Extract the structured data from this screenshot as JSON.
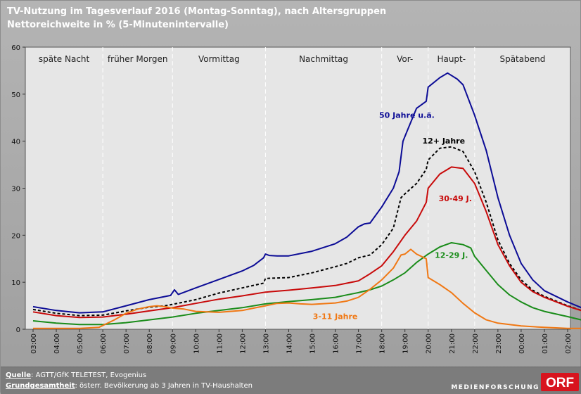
{
  "title": {
    "line1": "TV-Nutzung im Tagesverlauf 2016 (Montag-Sonntag), nach Altersgruppen",
    "line2": "Nettoreichweite in % (5-Minutenintervalle)"
  },
  "footer": {
    "source_label": "Quelle",
    "source_text": ": AGTT/GfK TELETEST, Evogenius",
    "base_label": "Grundgesamtheit",
    "base_text": ": österr. Bevölkerung ab 3 Jahren in TV-Haushalten",
    "brand": "MEDIENFORSCHUNG",
    "logo_text": "ORF"
  },
  "colors": {
    "s50": "#0c0c96",
    "s12": "#000000",
    "s3049": "#c80a0a",
    "s1229": "#1a8c1a",
    "s311": "#f07814",
    "logo_red": "#d8141e"
  },
  "chart_data": {
    "type": "line",
    "x_unit": "time",
    "x_range": [
      "03:00",
      "03:00"
    ],
    "ylim": [
      0,
      60
    ],
    "yticks": [
      0,
      10,
      20,
      30,
      40,
      50,
      60
    ],
    "xticks": [
      "03:00",
      "04:00",
      "05:00",
      "06:00",
      "07:00",
      "08:00",
      "09:00",
      "10:00",
      "11:00",
      "12:00",
      "13:00",
      "14:00",
      "15:00",
      "16:00",
      "17:00",
      "18:00",
      "19:00",
      "20:00",
      "21:00",
      "22:00",
      "23:00",
      "00:00",
      "01:00",
      "02:00"
    ],
    "grid": false,
    "dayparts": [
      {
        "label": "späte Nacht",
        "start": "03:00",
        "end": "06:00"
      },
      {
        "label": "früher Morgen",
        "start": "06:00",
        "end": "09:00"
      },
      {
        "label": "Vormittag",
        "start": "09:00",
        "end": "13:00"
      },
      {
        "label": "Nachmittag",
        "start": "13:00",
        "end": "18:00"
      },
      {
        "label": "Vor-",
        "start": "18:00",
        "end": "20:00"
      },
      {
        "label": "Haupt-",
        "start": "20:00",
        "end": "22:00"
      },
      {
        "label": "Spätabend",
        "start": "22:00",
        "end": "03:00"
      }
    ],
    "series": [
      {
        "name": "50 Jahre u.ä.",
        "color": "#0c0c96",
        "dashed": false,
        "points": [
          [
            "03:00",
            4.8
          ],
          [
            "04:00",
            4.0
          ],
          [
            "05:00",
            3.5
          ],
          [
            "06:00",
            3.7
          ],
          [
            "07:00",
            5.0
          ],
          [
            "08:00",
            6.3
          ],
          [
            "08:30",
            6.8
          ],
          [
            "08:55",
            7.2
          ],
          [
            "09:05",
            8.4
          ],
          [
            "09:15",
            7.4
          ],
          [
            "10:00",
            8.8
          ],
          [
            "11:00",
            10.6
          ],
          [
            "12:00",
            12.4
          ],
          [
            "12:30",
            13.6
          ],
          [
            "12:55",
            15.2
          ],
          [
            "13:00",
            16.0
          ],
          [
            "13:10",
            15.7
          ],
          [
            "13:30",
            15.6
          ],
          [
            "14:00",
            15.6
          ],
          [
            "15:00",
            16.6
          ],
          [
            "16:00",
            18.2
          ],
          [
            "16:30",
            19.6
          ],
          [
            "17:00",
            21.8
          ],
          [
            "17:15",
            22.4
          ],
          [
            "17:30",
            22.6
          ],
          [
            "18:00",
            26.0
          ],
          [
            "18:30",
            30.0
          ],
          [
            "18:45",
            33.5
          ],
          [
            "18:55",
            40.0
          ],
          [
            "19:05",
            42.0
          ],
          [
            "19:30",
            47.0
          ],
          [
            "19:55",
            48.5
          ],
          [
            "20:00",
            51.5
          ],
          [
            "20:30",
            53.5
          ],
          [
            "20:50",
            54.5
          ],
          [
            "21:15",
            53.2
          ],
          [
            "21:30",
            52.0
          ],
          [
            "22:00",
            45.5
          ],
          [
            "22:30",
            38.0
          ],
          [
            "23:00",
            28.0
          ],
          [
            "23:30",
            20.0
          ],
          [
            "00:00",
            14.0
          ],
          [
            "00:30",
            10.5
          ],
          [
            "01:00",
            8.2
          ],
          [
            "02:00",
            5.8
          ],
          [
            "02:50",
            4.1
          ]
        ]
      },
      {
        "name": "12+ Jahre",
        "color": "#000000",
        "dashed": true,
        "points": [
          [
            "03:00",
            4.2
          ],
          [
            "04:00",
            3.4
          ],
          [
            "05:00",
            2.9
          ],
          [
            "06:00",
            3.0
          ],
          [
            "07:00",
            3.9
          ],
          [
            "08:00",
            4.7
          ],
          [
            "08:40",
            5.0
          ],
          [
            "09:00",
            5.3
          ],
          [
            "10:00",
            6.3
          ],
          [
            "11:00",
            7.7
          ],
          [
            "12:00",
            8.8
          ],
          [
            "12:55",
            9.8
          ],
          [
            "13:00",
            10.8
          ],
          [
            "14:00",
            11.0
          ],
          [
            "15:00",
            12.0
          ],
          [
            "16:00",
            13.3
          ],
          [
            "16:30",
            14.0
          ],
          [
            "17:00",
            15.2
          ],
          [
            "17:30",
            15.8
          ],
          [
            "18:00",
            18.0
          ],
          [
            "18:30",
            21.5
          ],
          [
            "18:50",
            28.0
          ],
          [
            "19:00",
            28.8
          ],
          [
            "19:30",
            31.0
          ],
          [
            "19:55",
            34.0
          ],
          [
            "20:00",
            36.0
          ],
          [
            "20:30",
            38.5
          ],
          [
            "21:00",
            38.8
          ],
          [
            "21:30",
            37.8
          ],
          [
            "22:00",
            33.5
          ],
          [
            "22:30",
            27.0
          ],
          [
            "23:00",
            19.0
          ],
          [
            "23:30",
            14.0
          ],
          [
            "00:00",
            10.5
          ],
          [
            "00:30",
            8.3
          ],
          [
            "01:00",
            7.0
          ],
          [
            "02:00",
            5.0
          ],
          [
            "02:50",
            3.6
          ]
        ]
      },
      {
        "name": "30-49 J.",
        "color": "#c80a0a",
        "dashed": false,
        "points": [
          [
            "03:00",
            3.7
          ],
          [
            "04:00",
            2.9
          ],
          [
            "05:00",
            2.5
          ],
          [
            "06:00",
            2.6
          ],
          [
            "07:00",
            3.2
          ],
          [
            "08:00",
            3.9
          ],
          [
            "09:00",
            4.6
          ],
          [
            "10:00",
            5.5
          ],
          [
            "11:00",
            6.4
          ],
          [
            "12:00",
            7.1
          ],
          [
            "13:00",
            7.9
          ],
          [
            "14:00",
            8.3
          ],
          [
            "15:00",
            8.8
          ],
          [
            "16:00",
            9.3
          ],
          [
            "16:30",
            9.8
          ],
          [
            "17:00",
            10.3
          ],
          [
            "17:30",
            11.8
          ],
          [
            "18:00",
            13.5
          ],
          [
            "18:30",
            16.5
          ],
          [
            "19:00",
            20.0
          ],
          [
            "19:30",
            23.0
          ],
          [
            "19:55",
            27.0
          ],
          [
            "20:00",
            30.0
          ],
          [
            "20:30",
            33.0
          ],
          [
            "21:00",
            34.5
          ],
          [
            "21:30",
            34.2
          ],
          [
            "22:00",
            31.0
          ],
          [
            "22:30",
            25.0
          ],
          [
            "23:00",
            18.0
          ],
          [
            "23:30",
            13.5
          ],
          [
            "00:00",
            10.0
          ],
          [
            "00:30",
            8.0
          ],
          [
            "01:00",
            6.8
          ],
          [
            "02:00",
            4.9
          ],
          [
            "02:50",
            3.6
          ]
        ]
      },
      {
        "name": "12-29 J.",
        "color": "#1a8c1a",
        "dashed": false,
        "points": [
          [
            "03:00",
            1.8
          ],
          [
            "04:00",
            1.3
          ],
          [
            "05:00",
            1.0
          ],
          [
            "06:00",
            1.0
          ],
          [
            "07:00",
            1.4
          ],
          [
            "08:00",
            2.0
          ],
          [
            "09:00",
            2.6
          ],
          [
            "10:00",
            3.4
          ],
          [
            "11:00",
            4.0
          ],
          [
            "12:00",
            4.6
          ],
          [
            "13:00",
            5.4
          ],
          [
            "14:00",
            5.9
          ],
          [
            "15:00",
            6.3
          ],
          [
            "16:00",
            6.8
          ],
          [
            "16:30",
            7.3
          ],
          [
            "17:00",
            7.8
          ],
          [
            "17:30",
            8.4
          ],
          [
            "18:00",
            9.2
          ],
          [
            "18:30",
            10.5
          ],
          [
            "19:00",
            12.0
          ],
          [
            "19:30",
            14.2
          ],
          [
            "20:00",
            16.0
          ],
          [
            "20:30",
            17.5
          ],
          [
            "21:00",
            18.4
          ],
          [
            "21:30",
            18.0
          ],
          [
            "21:50",
            17.3
          ],
          [
            "22:00",
            15.5
          ],
          [
            "22:30",
            12.5
          ],
          [
            "23:00",
            9.5
          ],
          [
            "23:30",
            7.3
          ],
          [
            "00:00",
            5.8
          ],
          [
            "00:30",
            4.6
          ],
          [
            "01:00",
            3.8
          ],
          [
            "02:00",
            2.7
          ],
          [
            "02:50",
            1.7
          ]
        ]
      },
      {
        "name": "3-11 Jahre",
        "color": "#f07814",
        "dashed": false,
        "points": [
          [
            "03:00",
            0.2
          ],
          [
            "04:00",
            0.2
          ],
          [
            "05:00",
            0.2
          ],
          [
            "05:50",
            0.4
          ],
          [
            "06:30",
            2.0
          ],
          [
            "07:00",
            3.4
          ],
          [
            "07:30",
            4.3
          ],
          [
            "08:00",
            4.8
          ],
          [
            "08:20",
            5.0
          ],
          [
            "08:40",
            4.8
          ],
          [
            "09:00",
            4.5
          ],
          [
            "09:30",
            4.3
          ],
          [
            "10:00",
            3.8
          ],
          [
            "11:00",
            3.6
          ],
          [
            "12:00",
            4.0
          ],
          [
            "12:30",
            4.5
          ],
          [
            "13:00",
            5.0
          ],
          [
            "13:30",
            5.5
          ],
          [
            "14:00",
            5.6
          ],
          [
            "14:30",
            5.4
          ],
          [
            "15:00",
            5.3
          ],
          [
            "16:00",
            5.6
          ],
          [
            "16:30",
            6.0
          ],
          [
            "17:00",
            6.8
          ],
          [
            "17:30",
            8.5
          ],
          [
            "18:00",
            10.5
          ],
          [
            "18:30",
            13.0
          ],
          [
            "18:50",
            15.8
          ],
          [
            "19:00",
            16.0
          ],
          [
            "19:15",
            17.0
          ],
          [
            "19:30",
            16.0
          ],
          [
            "19:55",
            15.0
          ],
          [
            "20:00",
            11.0
          ],
          [
            "20:30",
            9.5
          ],
          [
            "21:00",
            7.8
          ],
          [
            "21:30",
            5.5
          ],
          [
            "22:00",
            3.5
          ],
          [
            "22:30",
            2.0
          ],
          [
            "23:00",
            1.3
          ],
          [
            "00:00",
            0.7
          ],
          [
            "01:00",
            0.4
          ],
          [
            "02:00",
            0.2
          ],
          [
            "02:50",
            0.2
          ]
        ]
      }
    ],
    "series_labels": [
      {
        "text": "50 Jahre u.ä.",
        "color": "#0c0c96",
        "at_x": "19:05",
        "at_y": 45
      },
      {
        "text": "12+ Jahre",
        "color": "#000000",
        "at_x": "20:40",
        "at_y": 39.5
      },
      {
        "text": "30-49 J.",
        "color": "#c80a0a",
        "at_x": "21:10",
        "at_y": 27.2
      },
      {
        "text": "12-29 J.",
        "color": "#1a8c1a",
        "at_x": "21:00",
        "at_y": 15.2
      },
      {
        "text": "3-11 Jahre",
        "color": "#f07814",
        "at_x": "16:00",
        "at_y": 2.2
      }
    ]
  }
}
